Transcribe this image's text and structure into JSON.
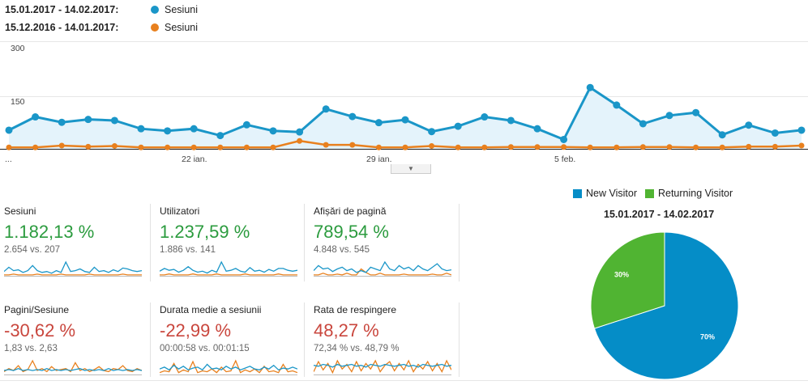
{
  "legend": {
    "current_range": "15.01.2017 - 14.02.2017:",
    "previous_range": "15.12.2016 - 14.01.2017:",
    "current_series_name": "Sesiuni",
    "previous_series_name": "Sesiuni"
  },
  "colors": {
    "current": "#1a96c8",
    "previous": "#e8801e",
    "positive": "#2b9b3e",
    "negative": "#c9463d",
    "pie_new": "#058dc7",
    "pie_returning": "#50b432"
  },
  "chart_data": [
    {
      "type": "line",
      "ylim": [
        0,
        300
      ],
      "y_ticks": [
        "300",
        "150"
      ],
      "x_tick_labels": [
        "...",
        "22 ian.",
        "29 ian.",
        "5 feb."
      ],
      "series": [
        {
          "name": "Sesiuni",
          "values": [
            52,
            89,
            74,
            82,
            79,
            56,
            50,
            56,
            37,
            67,
            50,
            47,
            111,
            90,
            73,
            81,
            48,
            63,
            89,
            79,
            56,
            26,
            171,
            122,
            70,
            93,
            101,
            39,
            66,
            44,
            52
          ]
        },
        {
          "name": "Sesiuni",
          "values": [
            4,
            4,
            9,
            6,
            8,
            4,
            4,
            4,
            4,
            4,
            4,
            22,
            11,
            11,
            4,
            4,
            8,
            4,
            4,
            5,
            5,
            5,
            4,
            4,
            5,
            5,
            4,
            4,
            6,
            6,
            9
          ]
        }
      ]
    },
    {
      "type": "pie",
      "title": "15.01.2017 - 14.02.2017",
      "slices": [
        {
          "label": "New Visitor",
          "value": 70,
          "display": "70%"
        },
        {
          "label": "Returning Visitor",
          "value": 30,
          "display": "30%"
        }
      ]
    }
  ],
  "metrics": [
    {
      "label": "Sesiuni",
      "value": "1.182,13 %",
      "compare": "2.654 vs. 207",
      "trend": "positive",
      "spark_current": [
        5,
        10,
        6,
        7,
        4,
        6,
        12,
        6,
        4,
        5,
        3,
        6,
        4,
        16,
        5,
        6,
        8,
        5,
        4,
        10,
        5,
        6,
        4,
        7,
        5,
        9,
        8,
        6,
        5,
        6
      ],
      "spark_previous": [
        1,
        1,
        2,
        1,
        1,
        1,
        1,
        2,
        1,
        1,
        1,
        1,
        2,
        1,
        1,
        1,
        1,
        1,
        2,
        1,
        1,
        1,
        1,
        1,
        1,
        2,
        1,
        1,
        1,
        1
      ]
    },
    {
      "label": "Utilizatori",
      "value": "1.237,59 %",
      "compare": "1.886 vs. 141",
      "trend": "positive",
      "spark_current": [
        5,
        8,
        6,
        7,
        4,
        6,
        10,
        6,
        4,
        5,
        3,
        6,
        4,
        15,
        5,
        6,
        8,
        5,
        4,
        9,
        5,
        6,
        4,
        7,
        5,
        8,
        8,
        6,
        5,
        6
      ],
      "spark_previous": [
        1,
        1,
        2,
        1,
        1,
        1,
        1,
        2,
        1,
        1,
        1,
        1,
        2,
        1,
        1,
        1,
        1,
        1,
        2,
        1,
        1,
        1,
        1,
        1,
        1,
        2,
        1,
        1,
        1,
        1
      ]
    },
    {
      "label": "Afișări de pagină",
      "value": "789,54 %",
      "compare": "4.848 vs. 545",
      "trend": "positive",
      "spark_current": [
        6,
        12,
        8,
        9,
        5,
        8,
        10,
        6,
        8,
        4,
        6,
        4,
        10,
        8,
        6,
        16,
        8,
        6,
        12,
        8,
        10,
        6,
        12,
        8,
        6,
        10,
        14,
        8,
        6,
        7
      ],
      "spark_previous": [
        1,
        1,
        3,
        1,
        1,
        2,
        1,
        3,
        1,
        1,
        8,
        4,
        1,
        1,
        3,
        1,
        1,
        1,
        1,
        2,
        1,
        1,
        1,
        1,
        1,
        2,
        1,
        1,
        3,
        1
      ]
    },
    {
      "label": "Pagini/Sesiune",
      "value": "-30,62 %",
      "compare": "1,83 vs. 2,63",
      "trend": "negative",
      "spark_current": [
        4,
        5,
        4,
        6,
        4,
        5,
        4,
        5,
        4,
        6,
        4,
        5,
        4,
        5,
        4,
        5,
        6,
        4,
        5,
        4,
        5,
        4,
        6,
        4,
        5,
        4,
        5,
        4,
        5,
        4
      ],
      "spark_previous": [
        3,
        6,
        4,
        9,
        3,
        5,
        14,
        4,
        6,
        3,
        8,
        4,
        5,
        6,
        3,
        12,
        4,
        6,
        3,
        5,
        8,
        4,
        3,
        6,
        5,
        9,
        4,
        3,
        6,
        4
      ]
    },
    {
      "label": "Durata medie a sesiunii",
      "value": "-22,99 %",
      "compare": "00:00:58 vs. 00:01:15",
      "trend": "negative",
      "spark_current": [
        6,
        8,
        5,
        10,
        6,
        9,
        5,
        7,
        8,
        5,
        11,
        6,
        7,
        5,
        9,
        6,
        8,
        5,
        7,
        9,
        6,
        5,
        8,
        6,
        10,
        5,
        7,
        6,
        8,
        6
      ],
      "spark_previous": [
        2,
        4,
        3,
        12,
        2,
        5,
        3,
        14,
        2,
        4,
        3,
        6,
        2,
        8,
        3,
        4,
        15,
        2,
        5,
        3,
        6,
        2,
        9,
        3,
        4,
        2,
        11,
        3,
        4,
        2
      ]
    },
    {
      "label": "Rata de respingere",
      "value": "48,27 %",
      "compare": "72,34 % vs. 48,79 %",
      "trend": "positive",
      "spark_current": [
        10,
        9,
        11,
        10,
        8,
        11,
        9,
        10,
        11,
        9,
        10,
        8,
        11,
        10,
        9,
        11,
        10,
        9,
        10,
        11,
        9,
        10,
        8,
        11,
        10,
        9,
        10,
        11,
        9,
        10
      ],
      "spark_previous": [
        3,
        14,
        5,
        12,
        2,
        15,
        6,
        11,
        3,
        14,
        4,
        12,
        6,
        15,
        3,
        10,
        14,
        4,
        12,
        5,
        15,
        3,
        11,
        6,
        14,
        4,
        12,
        3,
        15,
        5
      ]
    }
  ],
  "pie": {
    "title": "15.01.2017 - 14.02.2017",
    "legend_new": "New Visitor",
    "legend_returning": "Returning Visitor",
    "label_new": "70%",
    "label_returning": "30%"
  }
}
